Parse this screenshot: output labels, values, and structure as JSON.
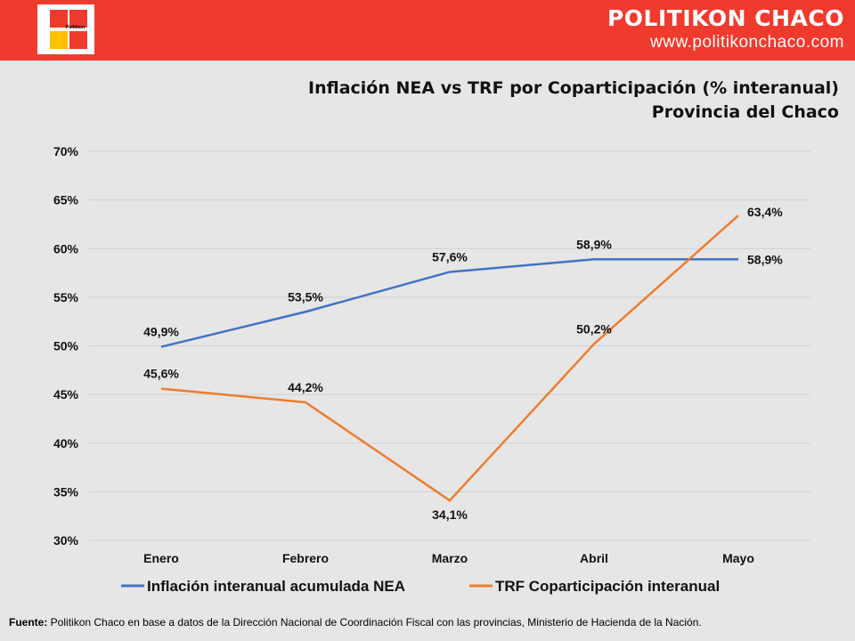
{
  "header": {
    "brand_name": "POLITIKON CHACO",
    "brand_url": "www.politikonchaco.com",
    "logo_text": "Politikon",
    "colors": {
      "bar": "#f03a2e",
      "logo_red": "#f03a2e",
      "logo_yellow": "#ffc000"
    }
  },
  "chart_data": {
    "type": "line",
    "title": "Inflación NEA vs TRF por Coparticipación (% interanual)",
    "subtitle": "Provincia del Chaco",
    "categories": [
      "Enero",
      "Febrero",
      "Marzo",
      "Abril",
      "Mayo"
    ],
    "series": [
      {
        "name": "Inflación interanual acumulada NEA",
        "color": "#4472c4",
        "values": [
          49.9,
          53.5,
          57.6,
          58.9,
          58.9
        ],
        "labels": [
          "49,9%",
          "53,5%",
          "57,6%",
          "58,9%",
          "58,9%"
        ]
      },
      {
        "name": "TRF Coparticipación interanual",
        "color": "#ed7d31",
        "values": [
          45.6,
          44.2,
          34.1,
          50.2,
          63.4
        ],
        "labels": [
          "45,6%",
          "44,2%",
          "34,1%",
          "50,2%",
          "63,4%"
        ]
      }
    ],
    "ylim": [
      30,
      70
    ],
    "yticks": [
      "30%",
      "35%",
      "40%",
      "45%",
      "50%",
      "55%",
      "60%",
      "65%",
      "70%"
    ],
    "grid": true,
    "legend": "bottom"
  },
  "source": {
    "label": "Fuente:",
    "text": " Politikon Chaco en base a datos de la Dirección Nacional de Coordinación Fiscal con las provincias, Ministerio de Hacienda de la Nación."
  }
}
